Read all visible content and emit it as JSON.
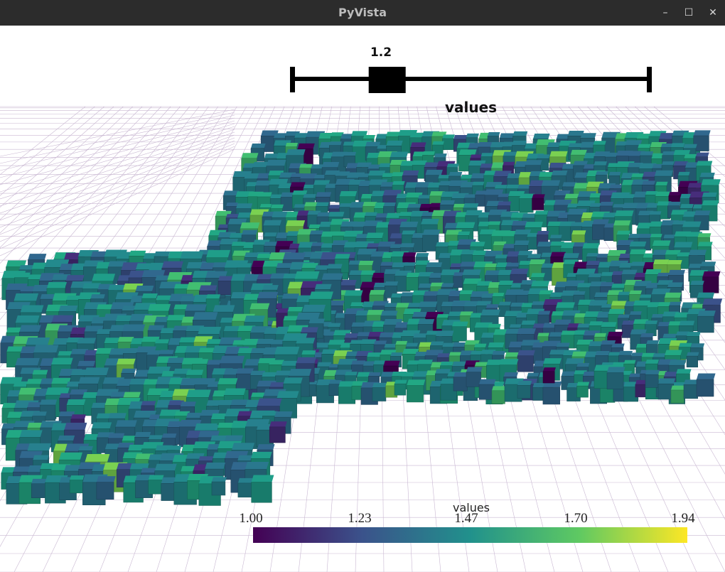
{
  "window": {
    "title": "PyVista",
    "controls": {
      "minimize": "–",
      "maximize": "☐",
      "close": "✕"
    }
  },
  "slider": {
    "title": "values",
    "value_label": "1.2",
    "min": 1.0,
    "max": 1.94,
    "value": 1.2
  },
  "scalar_bar": {
    "title": "values",
    "ticks": [
      "1.00",
      "1.23",
      "1.47",
      "1.70",
      "1.94"
    ],
    "colormap": "viridis",
    "colors": [
      "#440154",
      "#3b528b",
      "#21918c",
      "#5ec962",
      "#fde725"
    ]
  },
  "scene": {
    "mesh": "thresholded voxel grid",
    "grid_color": "#c9b8d2",
    "background": "#ffffff"
  }
}
